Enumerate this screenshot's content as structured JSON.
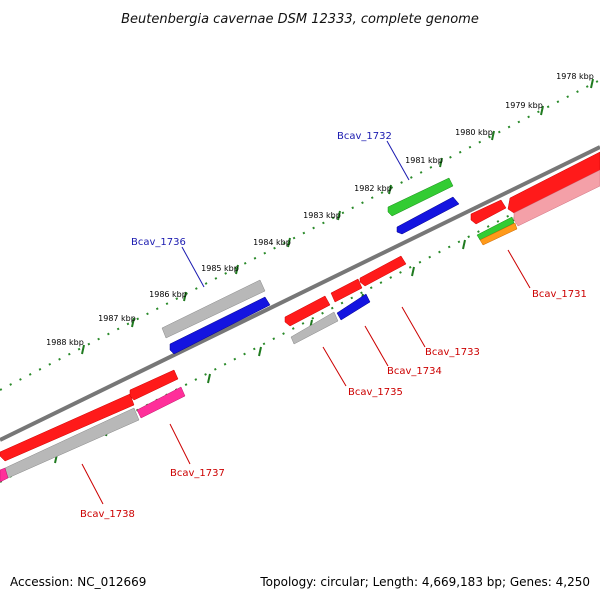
{
  "title": "Beutenbergia cavernae DSM 12333, complete genome",
  "footer": {
    "accession": "Accession: NC_012669",
    "summary": "Topology: circular; Length: 4,669,183 bp; Genes: 4,250"
  },
  "colors": {
    "label_upper": "#1a1ab0",
    "label_lower": "#cc0000",
    "leader_upper": "#1a1ab0",
    "leader_lower": "#cc0000",
    "backbone": "#777777",
    "dots": "#2a8a2a",
    "red": "#ff1a1a",
    "blue": "#1414e0",
    "grey": "#b8b8b8",
    "green": "#33cc33",
    "pink": "#ff2f9a",
    "pink_light": "#f4a0a8",
    "orange": "#ff9a1a"
  },
  "scale_ticks": [
    "1978 kbp",
    "1979 kbp",
    "1980 kbp",
    "1981 kbp",
    "1982 kbp",
    "1983 kbp",
    "1984 kbp",
    "1985 kbp",
    "1986 kbp",
    "1987 kbp",
    "1988 kbp"
  ],
  "gene_labels": [
    {
      "name": "Bcav_1732",
      "color": "blue"
    },
    {
      "name": "Bcav_1736",
      "color": "blue"
    },
    {
      "name": "Bcav_1731",
      "color": "red"
    },
    {
      "name": "Bcav_1733",
      "color": "red"
    },
    {
      "name": "Bcav_1734",
      "color": "red"
    },
    {
      "name": "Bcav_1735",
      "color": "red"
    },
    {
      "name": "Bcav_1737",
      "color": "red"
    },
    {
      "name": "Bcav_1738",
      "color": "red"
    }
  ]
}
